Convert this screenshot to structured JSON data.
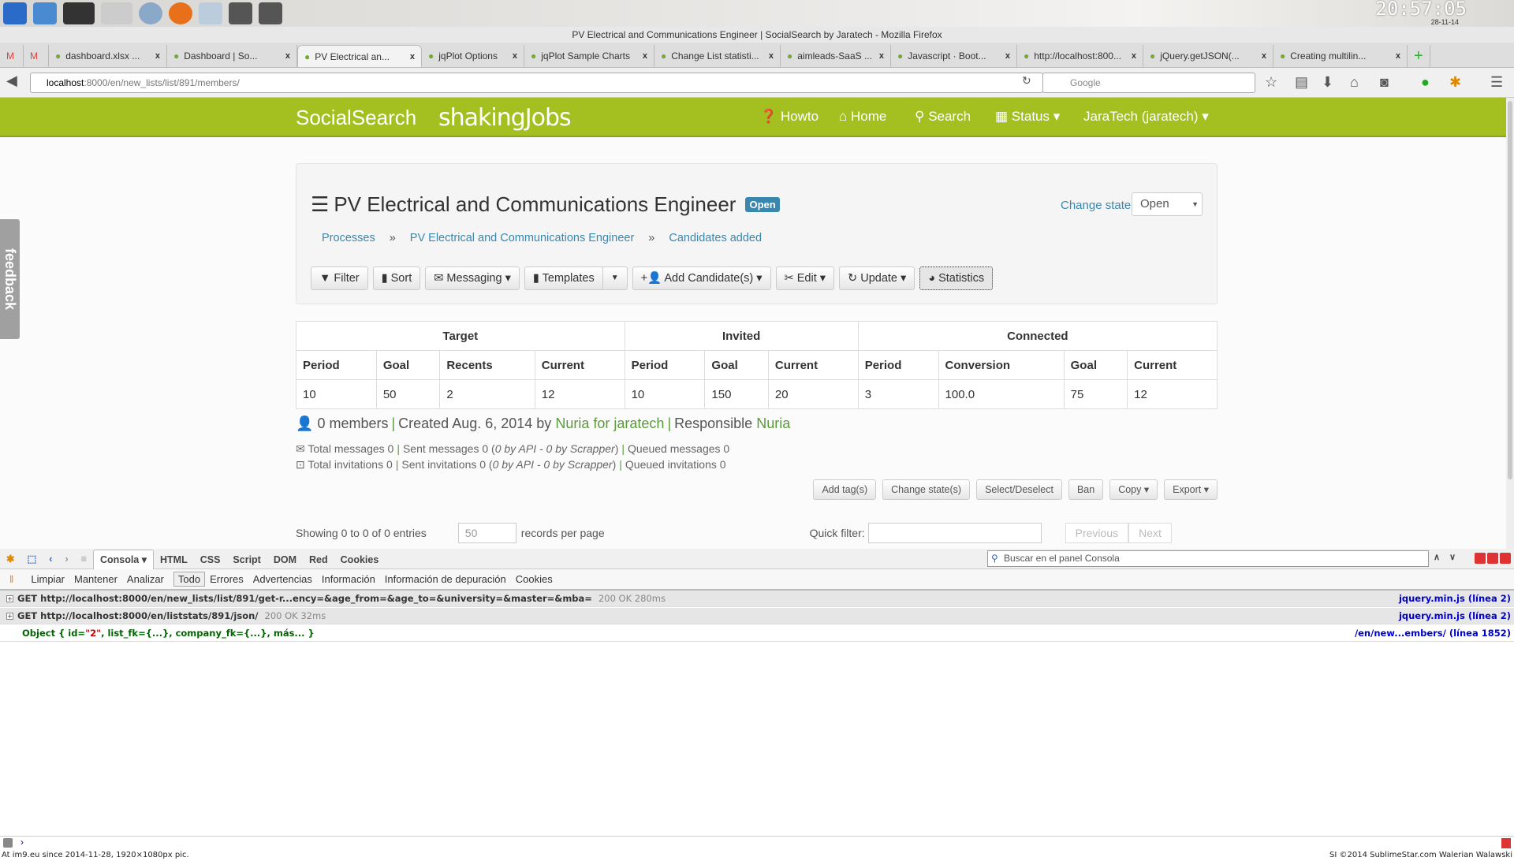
{
  "desktop": {
    "clock": "20:57:05",
    "date": "28-11-14"
  },
  "window": {
    "title": "PV Electrical and Communications Engineer | SocialSearch by Jaratech - Mozilla Firefox"
  },
  "browser": {
    "tabs": [
      {
        "label": "dashboard.xlsx ..."
      },
      {
        "label": "Dashboard | So..."
      },
      {
        "label": "PV Electrical an...",
        "active": true
      },
      {
        "label": "jqPlot Options"
      },
      {
        "label": "jqPlot Sample Charts"
      },
      {
        "label": "Change List statisti..."
      },
      {
        "label": "aimleads-SaaS ..."
      },
      {
        "label": "Javascript · Boot..."
      },
      {
        "label": "http://localhost:800..."
      },
      {
        "label": "jQuery.getJSON(..."
      },
      {
        "label": "Creating multilin..."
      }
    ],
    "url_host": "localhost",
    "url_rest": ":8000/en/new_lists/list/891/members/",
    "search_placeholder": "Google"
  },
  "header": {
    "brand": "SocialSearch",
    "logo": "shakingJobs",
    "color": "#a3c020",
    "nav": [
      {
        "label": "Howto",
        "icon": "question-circle-icon"
      },
      {
        "label": "Home",
        "icon": "home-icon"
      },
      {
        "label": "Search",
        "icon": "search-icon"
      },
      {
        "label": "Status ▾",
        "icon": "table-icon"
      },
      {
        "label": "JaraTech (jaratech) ▾"
      }
    ]
  },
  "feedback": "feedback",
  "page": {
    "title": "PV Electrical and Communications Engineer",
    "badge": "Open",
    "change_state_label": "Change state",
    "state_value": "Open",
    "breadcrumb": [
      "Processes",
      "PV Electrical and Communications Engineer",
      "Candidates added"
    ],
    "toolbar": [
      "Filter",
      "Sort",
      "Messaging ▾",
      "Templates",
      "Add Candidate(s) ▾",
      "Edit ▾",
      "Update ▾",
      "Statistics"
    ],
    "stats": {
      "groups": [
        "Target",
        "Invited",
        "Connected"
      ],
      "columns": [
        "Period",
        "Goal",
        "Recents",
        "Current",
        "Period",
        "Goal",
        "Current",
        "Period",
        "Conversion",
        "Goal",
        "Current"
      ],
      "values": [
        "10",
        "50",
        "2",
        "12",
        "10",
        "150",
        "20",
        "3",
        "100.0",
        "75",
        "12"
      ]
    },
    "summary": {
      "members": "0 members",
      "created": "Created Aug. 6, 2014 by",
      "creator": "Nuria",
      "for": "for",
      "company": "jaratech",
      "responsible_label": "Responsible",
      "responsible": "Nuria"
    },
    "messages": {
      "total": "Total messages 0",
      "sent": "Sent messages 0 (",
      "sent_detail": "0 by API - 0 by Scrapper",
      "queued": "Queued messages 0"
    },
    "invitations": {
      "total": "Total invitations 0",
      "sent": "Sent invitations 0 (",
      "sent_detail": "0 by API - 0 by Scrapper",
      "queued": "Queued invitations 0"
    },
    "actions": [
      "Add tag(s)",
      "Change state(s)",
      "Select/Deselect",
      "Ban",
      "Copy ▾",
      "Export ▾"
    ],
    "showing": "Showing 0 to 0 of 0 entries",
    "per_page": "50",
    "records_label": "records per page",
    "quick_filter": "Quick filter:",
    "prev": "Previous",
    "next": "Next"
  },
  "devtools": {
    "tabs": [
      "Consola ▾",
      "HTML",
      "CSS",
      "Script",
      "DOM",
      "Red",
      "Cookies"
    ],
    "search_placeholder": "Buscar en el panel Consola",
    "filters": [
      "Limpiar",
      "Mantener",
      "Analizar",
      "Todo",
      "Errores",
      "Advertencias",
      "Información",
      "Información de depuración",
      "Cookies"
    ],
    "rows": [
      {
        "text": "GET http://localhost:8000/en/new_lists/list/891/get-r...ency=&age_from=&age_to=&university=&master=&mba=",
        "meta": "200 OK 280ms",
        "src": "jquery.min.js (línea 2)"
      },
      {
        "text": "GET http://localhost:8000/en/liststats/891/json/",
        "meta": "200 OK 32ms",
        "src": "jquery.min.js (línea 2)"
      }
    ],
    "log": {
      "pre": "Object { id=",
      "id": "\"2\"",
      "post": ",  list_fk={...},  company_fk={...},  más... }",
      "src": "/en/new...embers/ (línea 1852)"
    },
    "prompt": "›"
  },
  "footer": {
    "left": "At im9.eu since 2014-11-28, 1920×1080px pic.",
    "right": "SI ©2014 SublimeStar.com Walerian Walawski"
  }
}
